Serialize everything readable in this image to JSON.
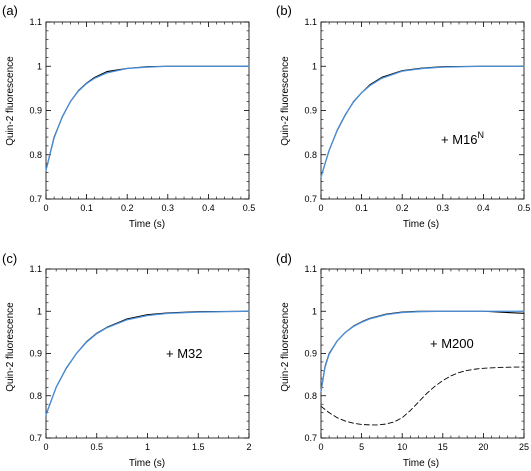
{
  "figure": {
    "background": "#ffffff",
    "fit_color": "#4a8fd8",
    "data_color": "#000000"
  },
  "chart_data": [
    {
      "type": "line",
      "panel_label": "(a)",
      "xlabel": "Time (s)",
      "ylabel": "Quin-2 fluorescence",
      "xlim": [
        0,
        0.5
      ],
      "ylim": [
        0.7,
        1.1
      ],
      "xticks": [
        0,
        0.1,
        0.2,
        0.3,
        0.4,
        0.5
      ],
      "yticks": [
        0.7,
        0.8,
        0.9,
        1,
        1.1
      ],
      "xtick_labels": [
        "0",
        "0.1",
        "0.2",
        "0.3",
        "0.4",
        "0.5"
      ],
      "ytick_labels": [
        "0.7",
        "0.8",
        "0.9",
        "1",
        "1.1"
      ],
      "annotation": "",
      "annotation_sup": "",
      "grid": false,
      "series": [
        {
          "style": "data",
          "x": [
            0,
            0.02,
            0.04,
            0.06,
            0.08,
            0.1,
            0.12,
            0.15,
            0.2,
            0.25,
            0.3,
            0.4,
            0.5
          ],
          "y": [
            0.765,
            0.84,
            0.885,
            0.92,
            0.945,
            0.962,
            0.975,
            0.988,
            0.995,
            0.999,
            1.0,
            1.0,
            1.0
          ]
        },
        {
          "style": "fit",
          "x": [
            0,
            0.02,
            0.04,
            0.06,
            0.08,
            0.1,
            0.12,
            0.15,
            0.2,
            0.25,
            0.3,
            0.4,
            0.5
          ],
          "y": [
            0.765,
            0.838,
            0.886,
            0.92,
            0.944,
            0.961,
            0.973,
            0.985,
            0.995,
            0.998,
            1.0,
            1.0,
            1.0
          ]
        }
      ]
    },
    {
      "type": "line",
      "panel_label": "(b)",
      "xlabel": "Time (s)",
      "ylabel": "Quin-2 fluorescence",
      "xlim": [
        0,
        0.5
      ],
      "ylim": [
        0.7,
        1.1
      ],
      "xticks": [
        0,
        0.1,
        0.2,
        0.3,
        0.4,
        0.5
      ],
      "yticks": [
        0.7,
        0.8,
        0.9,
        1,
        1.1
      ],
      "xtick_labels": [
        "0",
        "0.1",
        "0.2",
        "0.3",
        "0.4",
        "0.5"
      ],
      "ytick_labels": [
        "0.7",
        "0.8",
        "0.9",
        "1",
        "1.1"
      ],
      "annotation": "+ M16",
      "annotation_sup": "N",
      "grid": false,
      "series": [
        {
          "style": "data",
          "x": [
            0,
            0.02,
            0.04,
            0.06,
            0.08,
            0.1,
            0.12,
            0.15,
            0.2,
            0.25,
            0.3,
            0.4,
            0.5
          ],
          "y": [
            0.75,
            0.81,
            0.855,
            0.89,
            0.92,
            0.94,
            0.958,
            0.975,
            0.99,
            0.996,
            0.999,
            1.0,
            1.0
          ]
        },
        {
          "style": "fit",
          "x": [
            0,
            0.02,
            0.04,
            0.06,
            0.08,
            0.1,
            0.12,
            0.15,
            0.2,
            0.25,
            0.3,
            0.4,
            0.5
          ],
          "y": [
            0.75,
            0.81,
            0.856,
            0.891,
            0.919,
            0.94,
            0.956,
            0.973,
            0.989,
            0.995,
            0.998,
            1.0,
            1.0
          ]
        }
      ]
    },
    {
      "type": "line",
      "panel_label": "(c)",
      "xlabel": "Time (s)",
      "ylabel": "Quin-2 fluorescence",
      "xlim": [
        0,
        2
      ],
      "ylim": [
        0.7,
        1.1
      ],
      "xticks": [
        0,
        0.5,
        1,
        1.5,
        2
      ],
      "yticks": [
        0.7,
        0.8,
        0.9,
        1,
        1.1
      ],
      "xtick_labels": [
        "0",
        "0.5",
        "1",
        "1.5",
        "2"
      ],
      "ytick_labels": [
        "0.7",
        "0.8",
        "0.9",
        "1",
        "1.1"
      ],
      "annotation": "+ M32",
      "annotation_sup": "",
      "grid": false,
      "series": [
        {
          "style": "data",
          "x": [
            0,
            0.1,
            0.2,
            0.3,
            0.4,
            0.5,
            0.6,
            0.8,
            1.0,
            1.2,
            1.5,
            2.0
          ],
          "y": [
            0.755,
            0.82,
            0.865,
            0.9,
            0.928,
            0.948,
            0.962,
            0.982,
            0.992,
            0.996,
            0.999,
            1.0
          ]
        },
        {
          "style": "fit",
          "x": [
            0,
            0.1,
            0.2,
            0.3,
            0.4,
            0.5,
            0.6,
            0.8,
            1.0,
            1.2,
            1.5,
            2.0
          ],
          "y": [
            0.755,
            0.82,
            0.866,
            0.9,
            0.927,
            0.947,
            0.961,
            0.98,
            0.99,
            0.995,
            0.998,
            1.0
          ]
        }
      ]
    },
    {
      "type": "line",
      "panel_label": "(d)",
      "xlabel": "Time (s)",
      "ylabel": "Quin-2 fluorescence",
      "xlim": [
        0,
        25
      ],
      "ylim": [
        0.7,
        1.1
      ],
      "xticks": [
        0,
        5,
        10,
        15,
        20,
        25
      ],
      "yticks": [
        0.7,
        0.8,
        0.9,
        1,
        1.1
      ],
      "xtick_labels": [
        "0",
        "5",
        "10",
        "15",
        "20",
        "25"
      ],
      "ytick_labels": [
        "0.7",
        "0.8",
        "0.9",
        "1",
        "1.1"
      ],
      "annotation": "+ M200",
      "annotation_sup": "",
      "grid": false,
      "series": [
        {
          "style": "data",
          "x": [
            0,
            0.5,
            1,
            2,
            3,
            4,
            5,
            6,
            8,
            10,
            12,
            15,
            20,
            25
          ],
          "y": [
            0.81,
            0.87,
            0.9,
            0.93,
            0.95,
            0.965,
            0.975,
            0.983,
            0.993,
            0.998,
            1.0,
            1.0,
            1.0,
            0.995
          ]
        },
        {
          "style": "fit",
          "x": [
            0,
            0.5,
            1,
            2,
            3,
            4,
            5,
            6,
            8,
            10,
            12,
            15,
            20,
            25
          ],
          "y": [
            0.81,
            0.868,
            0.898,
            0.93,
            0.95,
            0.964,
            0.974,
            0.982,
            0.992,
            0.997,
            0.999,
            1.0,
            1.0,
            1.0
          ]
        },
        {
          "style": "dashed",
          "x": [
            0,
            1,
            2,
            3,
            4,
            5,
            6,
            7,
            8,
            9,
            10,
            11,
            12,
            13,
            14,
            15,
            16,
            17,
            18,
            19,
            20,
            22,
            24,
            25
          ],
          "y": [
            0.775,
            0.76,
            0.748,
            0.74,
            0.735,
            0.732,
            0.731,
            0.731,
            0.733,
            0.738,
            0.748,
            0.765,
            0.785,
            0.805,
            0.822,
            0.836,
            0.847,
            0.855,
            0.86,
            0.863,
            0.865,
            0.867,
            0.868,
            0.868
          ]
        }
      ]
    }
  ]
}
